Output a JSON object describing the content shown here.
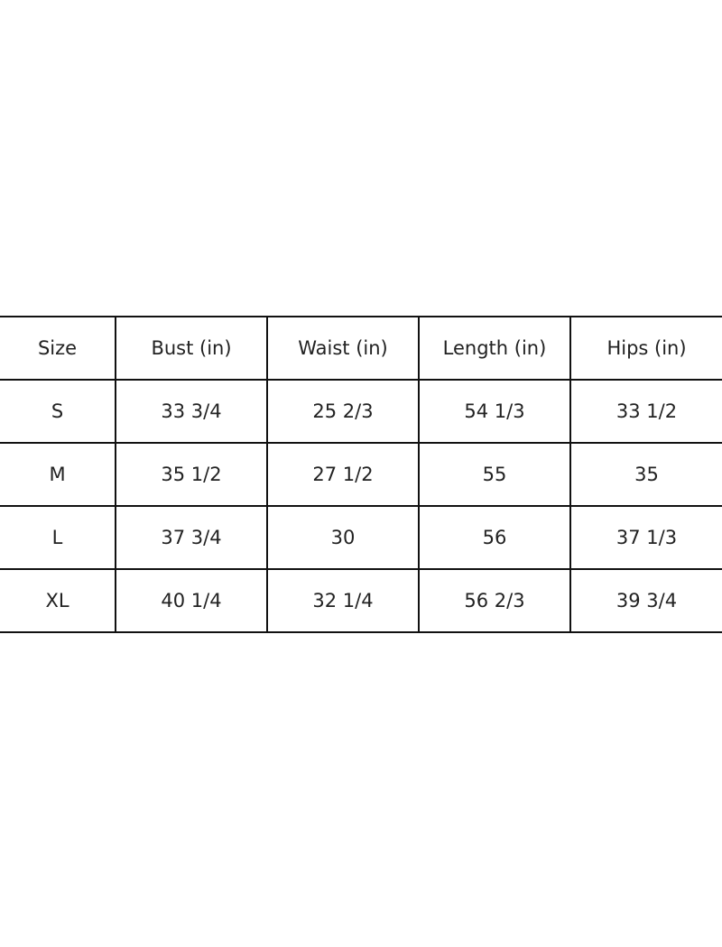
{
  "size_chart": {
    "headers": [
      "Size",
      "Bust (in)",
      "Waist (in)",
      "Length (in)",
      "Hips (in)"
    ],
    "rows": [
      [
        "S",
        "33 3/4",
        "25 2/3",
        "54 1/3",
        "33 1/2"
      ],
      [
        "M",
        "35 1/2",
        "27 1/2",
        "55",
        "35"
      ],
      [
        "L",
        "37 3/4",
        "30",
        "56",
        "37 1/3"
      ],
      [
        "XL",
        "40 1/4",
        "32 1/4",
        "56 2/3",
        "39 3/4"
      ]
    ]
  }
}
